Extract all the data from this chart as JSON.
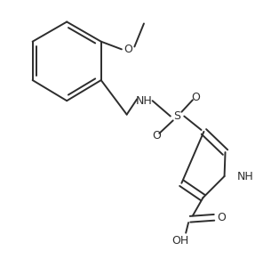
{
  "background_color": "#ffffff",
  "line_color": "#2d2d2d",
  "text_color": "#2d2d2d",
  "line_width": 1.4,
  "figsize": [
    2.87,
    2.91
  ],
  "dpi": 100,
  "xlim": [
    0,
    287
  ],
  "ylim": [
    0,
    291
  ]
}
